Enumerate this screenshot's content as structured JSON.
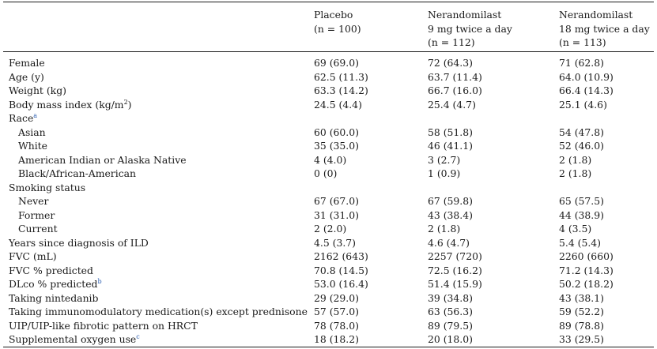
{
  "header": {
    "columns": [
      {
        "lines": [
          "Placebo",
          "(n = 100)"
        ]
      },
      {
        "lines": [
          "Nerandomilast",
          "9 mg twice a day",
          "(n = 112)"
        ]
      },
      {
        "lines": [
          "Nerandomilast",
          "18 mg twice a day",
          "(n = 113)"
        ]
      }
    ]
  },
  "rows": [
    {
      "label": "Female",
      "indent": false,
      "values": [
        "69 (69.0)",
        "72 (64.3)",
        "71 (62.8)"
      ]
    },
    {
      "label": "Age (y)",
      "indent": false,
      "values": [
        "62.5 (11.3)",
        "63.7 (11.4)",
        "64.0 (10.9)"
      ]
    },
    {
      "label": "Weight (kg)",
      "indent": false,
      "values": [
        "63.3 (14.2)",
        "66.7 (16.0)",
        "66.4 (14.3)"
      ]
    },
    {
      "label": "Body mass index (kg/m",
      "sup": "2",
      "suffix": ")",
      "indent": false,
      "values": [
        "24.5 (4.4)",
        "25.4 (4.7)",
        "25.1 (4.6)"
      ]
    },
    {
      "label": "Race",
      "footnote": "a",
      "indent": false,
      "values": [
        "",
        "",
        ""
      ]
    },
    {
      "label": "Asian",
      "indent": true,
      "values": [
        "60 (60.0)",
        "58 (51.8)",
        "54 (47.8)"
      ]
    },
    {
      "label": "White",
      "indent": true,
      "values": [
        "35 (35.0)",
        "46 (41.1)",
        "52 (46.0)"
      ]
    },
    {
      "label": "American Indian or Alaska Native",
      "indent": true,
      "values": [
        "4 (4.0)",
        "3 (2.7)",
        "2 (1.8)"
      ]
    },
    {
      "label": "Black/African-American",
      "indent": true,
      "values": [
        "0 (0)",
        "1 (0.9)",
        "2 (1.8)"
      ]
    },
    {
      "label": "Smoking status",
      "indent": false,
      "values": [
        "",
        "",
        ""
      ]
    },
    {
      "label": "Never",
      "indent": true,
      "values": [
        "67 (67.0)",
        "67 (59.8)",
        "65 (57.5)"
      ]
    },
    {
      "label": "Former",
      "indent": true,
      "values": [
        "31 (31.0)",
        "43 (38.4)",
        "44 (38.9)"
      ]
    },
    {
      "label": "Current",
      "indent": true,
      "values": [
        "2 (2.0)",
        "2 (1.8)",
        "4 (3.5)"
      ]
    },
    {
      "label": "Years since diagnosis of ILD",
      "indent": false,
      "values": [
        "4.5 (3.7)",
        "4.6 (4.7)",
        "5.4 (5.4)"
      ]
    },
    {
      "label": "FVC (mL)",
      "indent": false,
      "values": [
        "2162 (643)",
        "2257 (720)",
        "2260 (660)"
      ]
    },
    {
      "label": "FVC % predicted",
      "indent": false,
      "values": [
        "70.8 (14.5)",
        "72.5 (16.2)",
        "71.2 (14.3)"
      ]
    },
    {
      "label": "DLco % predicted",
      "footnote": "b",
      "indent": false,
      "values": [
        "53.0 (16.4)",
        "51.4 (15.9)",
        "50.2 (18.2)"
      ]
    },
    {
      "label": "Taking nintedanib",
      "indent": false,
      "values": [
        "29 (29.0)",
        "39 (34.8)",
        "43 (38.1)"
      ]
    },
    {
      "label": "Taking immunomodulatory medication(s) except prednisone",
      "indent": false,
      "values": [
        "57 (57.0)",
        "63 (56.3)",
        "59 (52.2)"
      ]
    },
    {
      "label": "UIP/UIP-like fibrotic pattern on HRCT",
      "indent": false,
      "values": [
        "78 (78.0)",
        "89 (79.5)",
        "89 (78.8)"
      ]
    },
    {
      "label": "Supplemental oxygen use",
      "footnote": "c",
      "indent": false,
      "values": [
        "18 (18.2)",
        "20 (18.0)",
        "33 (29.5)"
      ]
    }
  ]
}
